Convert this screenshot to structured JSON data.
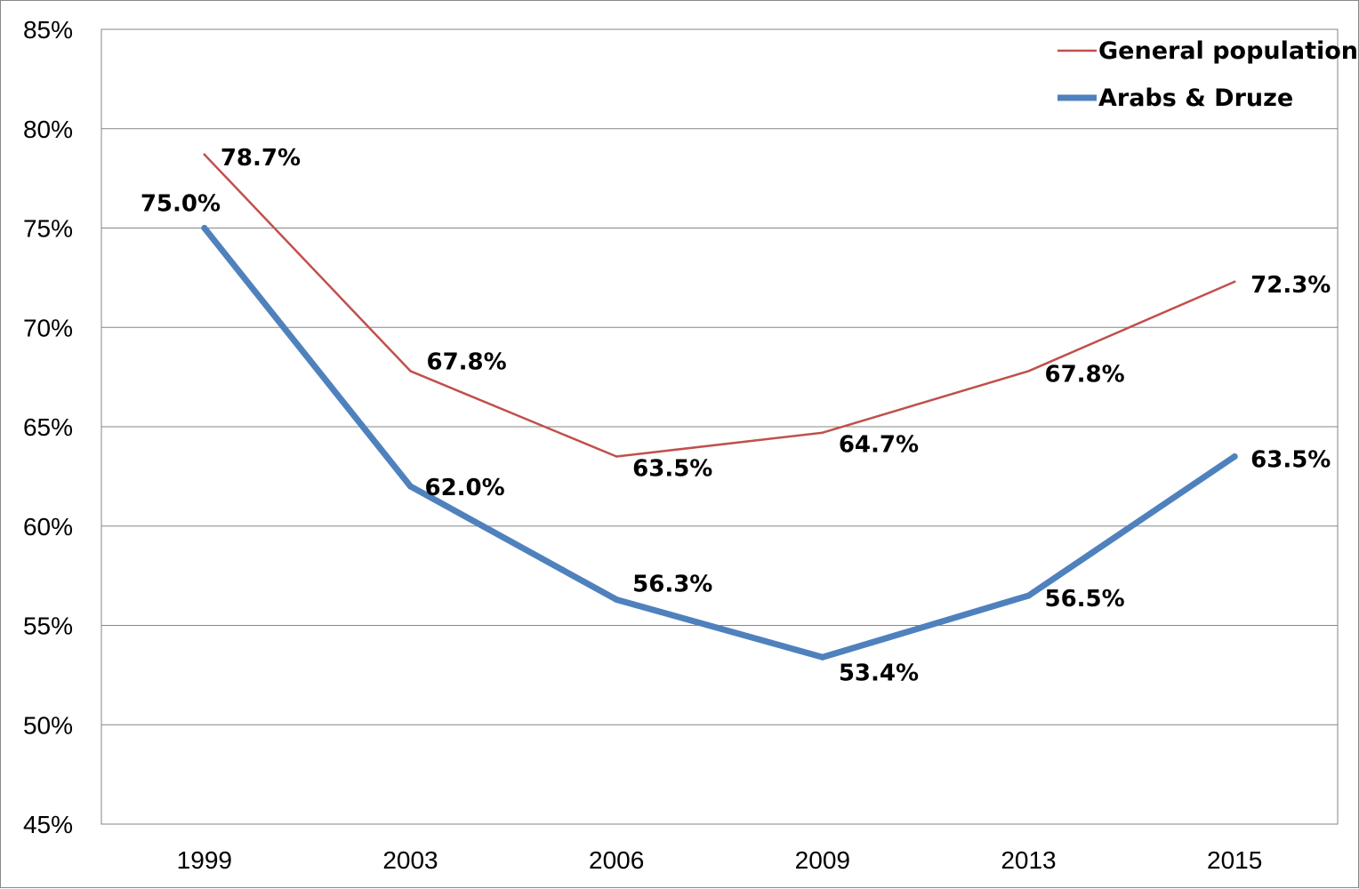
{
  "chart_data": {
    "type": "line",
    "x": [
      "1999",
      "2003",
      "2006",
      "2009",
      "2013",
      "2015"
    ],
    "y_ticks": [
      "45%",
      "50%",
      "55%",
      "60%",
      "65%",
      "70%",
      "75%",
      "80%",
      "85%"
    ],
    "ylim": [
      45,
      85
    ],
    "grid": true,
    "legend_position": "top-right",
    "series": [
      {
        "name": "General population",
        "color": "#C0504D",
        "values": [
          78.7,
          67.8,
          63.5,
          64.7,
          67.8,
          72.3
        ],
        "labels": [
          "78.7%",
          "67.8%",
          "63.5%",
          "64.7%",
          "67.8%",
          "72.3%"
        ]
      },
      {
        "name": "Arabs & Druze",
        "color": "#4F81BD",
        "values": [
          75.0,
          62.0,
          56.3,
          53.4,
          56.5,
          63.5
        ],
        "labels": [
          "75.0%",
          "62.0%",
          "56.3%",
          "53.4%",
          "56.5%",
          "63.5%"
        ]
      }
    ]
  }
}
